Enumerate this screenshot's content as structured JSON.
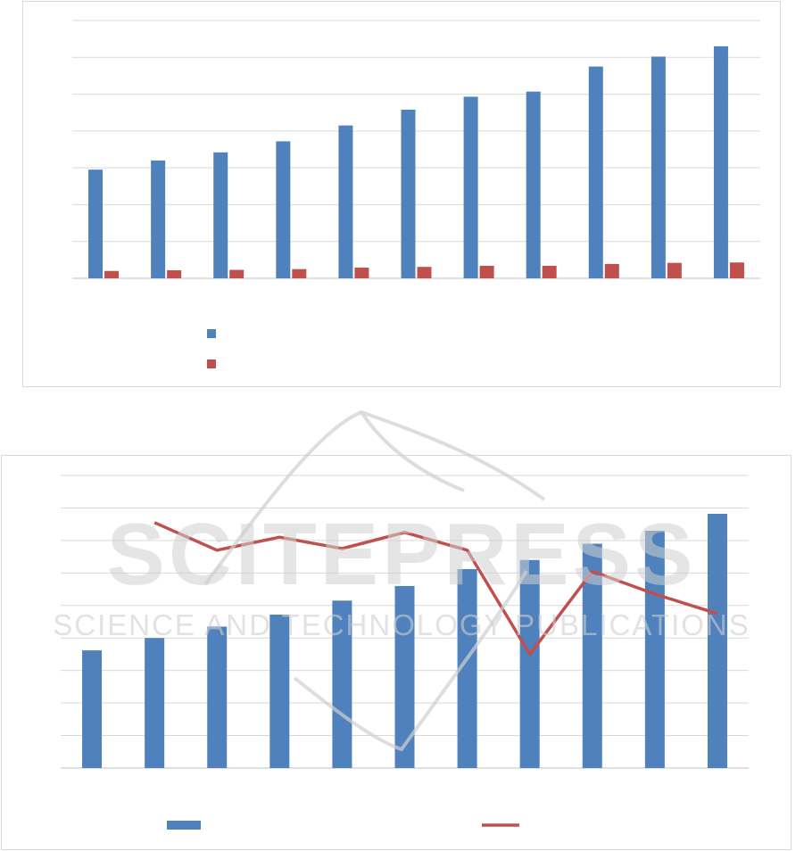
{
  "chart_data": [
    {
      "type": "bar",
      "categories": [
        "",
        "",
        "",
        "",
        "",
        "",
        "",
        "",
        "",
        "",
        ""
      ],
      "ylim": [
        0,
        7
      ],
      "grid": true,
      "legend_position": "bottom-left",
      "series": [
        {
          "color": "#4f81bd",
          "values": [
            2.95,
            3.2,
            3.42,
            3.72,
            4.15,
            4.58,
            4.93,
            5.07,
            5.75,
            6.02,
            6.3
          ]
        },
        {
          "color": "#c0504d",
          "values": [
            0.2,
            0.22,
            0.23,
            0.25,
            0.29,
            0.31,
            0.34,
            0.34,
            0.39,
            0.42,
            0.43
          ]
        }
      ]
    },
    {
      "type": "bar+line",
      "categories": [
        "",
        "",
        "",
        "",
        "",
        "",
        "",
        "",
        "",
        "",
        ""
      ],
      "ylim": [
        0,
        9
      ],
      "grid": true,
      "legend_position": "bottom",
      "series": [
        {
          "kind": "bar",
          "color": "#4f81bd",
          "values": [
            3.62,
            4.0,
            4.35,
            4.72,
            5.15,
            5.6,
            6.12,
            6.4,
            6.9,
            7.3,
            7.82
          ]
        },
        {
          "kind": "line",
          "color": "#c0504d",
          "values": [
            null,
            7.55,
            6.7,
            7.1,
            6.75,
            7.25,
            6.7,
            3.5,
            6.05,
            5.35,
            4.75
          ]
        }
      ]
    }
  ],
  "watermark": {
    "line1": "SCITEPRESS",
    "line2": "SCIENCE AND TECHNOLOGY PUBLICATIONS"
  }
}
